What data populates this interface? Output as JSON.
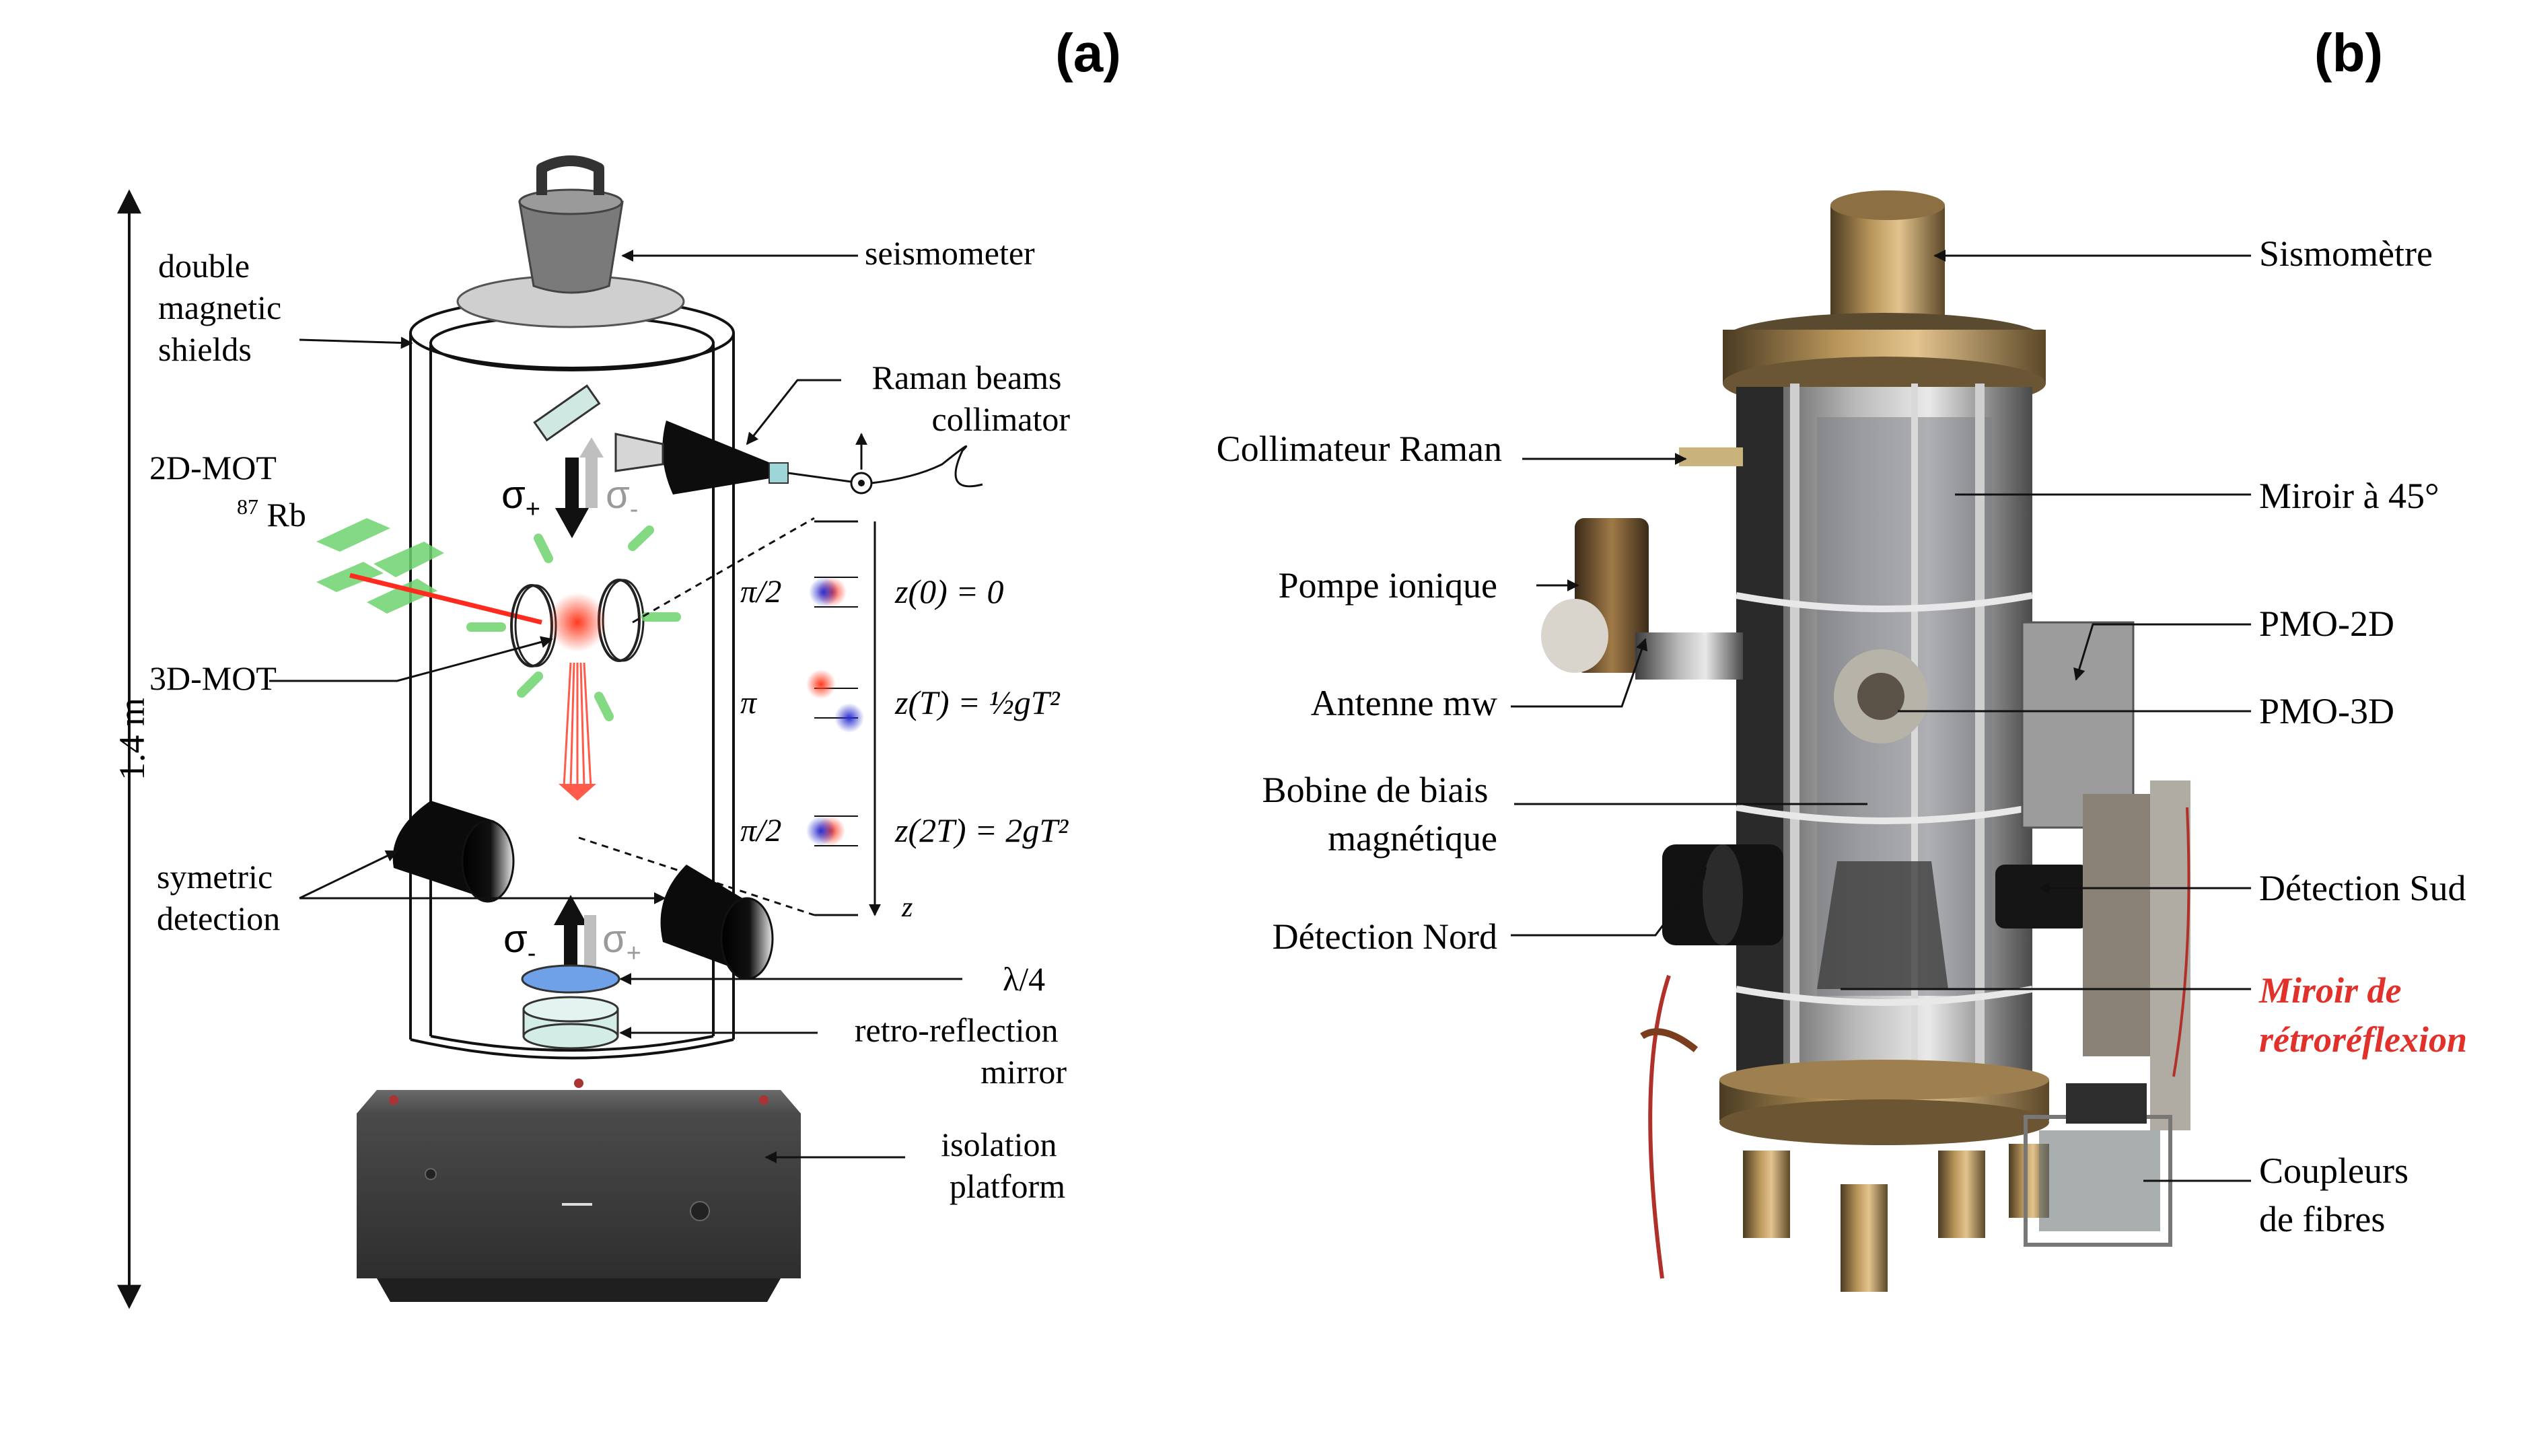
{
  "panels": {
    "a": {
      "tag": "(a)",
      "labels": {
        "double_magnetic_shields": [
          "double",
          "magnetic",
          "shields"
        ],
        "seismometer": "seismometer",
        "raman_collimator": [
          "Raman beams",
          "collimator"
        ],
        "mot2d": "2D-MOT",
        "rb_mass": "87",
        "rb_symbol": "Rb",
        "mot3d": "3D-MOT",
        "height": "1.4 m",
        "detection": [
          "symetric",
          "detection"
        ],
        "lambda4": "λ/4",
        "retro_mirror": [
          "retro-reflection",
          "mirror"
        ],
        "isolation": [
          "isolation",
          "platform"
        ],
        "sigma_plus": "σ+",
        "sigma_minus": "σ-",
        "sigma_minus_bottom": "σ-",
        "sigma_plus_bottom": "σ+"
      },
      "pulses": [
        {
          "pulse": "π/2",
          "position": "z(0) = 0"
        },
        {
          "pulse": "π",
          "position": "z(T) = ½gT²"
        },
        {
          "pulse": "π/2",
          "position": "z(2T) = 2gT²"
        }
      ],
      "z_axis": "z"
    },
    "b": {
      "tag": "(b)",
      "labels": {
        "sismometre": "Sismomètre",
        "collimateur": "Collimateur Raman",
        "miroir45": "Miroir à 45°",
        "pompe": "Pompe ionique",
        "pmo2d": "PMO-2D",
        "antenne": "Antenne mw",
        "pmo3d": "PMO-3D",
        "bobine": [
          "Bobine de biais",
          "magnétique"
        ],
        "detection_sud": "Détection Sud",
        "detection_nord": "Détection Nord",
        "miroir_retro": [
          "Miroir de",
          "rétroréflexion"
        ],
        "coupleurs": [
          "Coupleurs",
          "de fibres"
        ]
      },
      "accent_color": "#e0312b"
    }
  }
}
